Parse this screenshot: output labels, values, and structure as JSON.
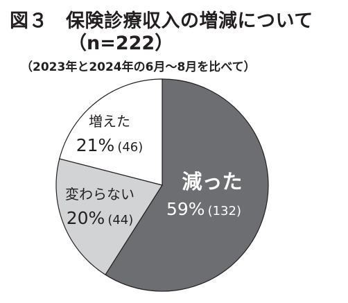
{
  "title": {
    "fig_no": "図３",
    "line1": "保険診療収入の増減について",
    "line2": "（n=222）"
  },
  "subtitle": "（2023年と2024年の6月〜8月を比べて）",
  "chart_data": {
    "type": "pie",
    "title": "保険診療収入の増減について",
    "n": 222,
    "slices": [
      {
        "name": "減った",
        "percent": 59,
        "count": 132,
        "percent_label": "59%",
        "count_label": "(132)",
        "color": "#6d6e71"
      },
      {
        "name": "変わらない",
        "percent": 20,
        "count": 44,
        "percent_label": "20%",
        "count_label": "(44)",
        "color": "#d1d3d4"
      },
      {
        "name": "増えた",
        "percent": 21,
        "count": 46,
        "percent_label": "21%",
        "count_label": "(46)",
        "color": "#ffffff"
      }
    ],
    "start_angle_deg": 0,
    "direction": "clockwise",
    "stroke_color": "#231f20"
  }
}
